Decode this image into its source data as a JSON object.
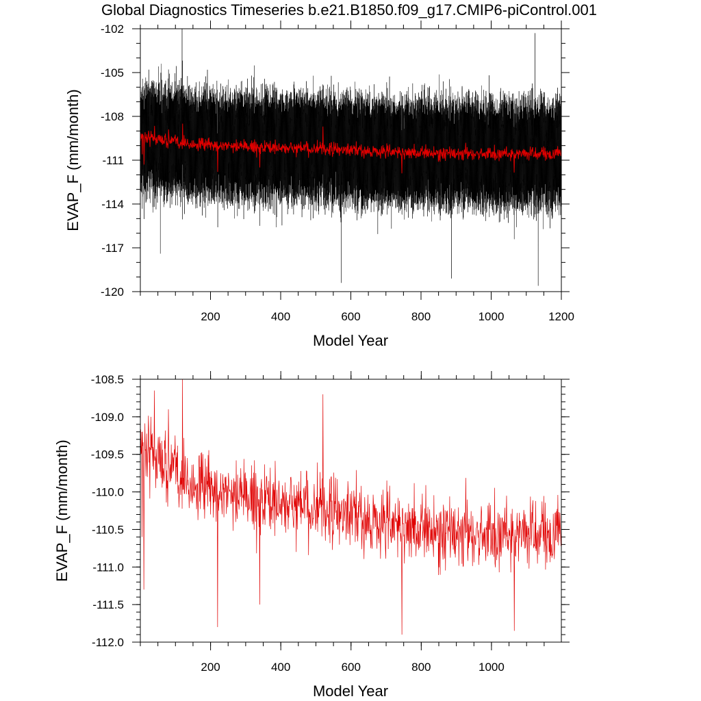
{
  "title": "Global Diagnostics Timeseries b.e21.B1850.f09_g17.CMIP6-piControl.001",
  "colors": {
    "monthly_series": "#000000",
    "annual_series": "#e00000",
    "axis": "#000000",
    "background": "#ffffff"
  },
  "chart_data": [
    {
      "type": "line",
      "name": "monthly-and-annual-timeseries",
      "xlabel": "Model Year",
      "ylabel": "EVAP_F (mm/month)",
      "xlim": [
        0,
        1200
      ],
      "ylim": [
        -120,
        -102
      ],
      "x_ticks": [
        200,
        400,
        600,
        800,
        1000,
        1200
      ],
      "y_ticks": [
        -120,
        -117,
        -114,
        -111,
        -108,
        -105,
        -102
      ],
      "y_tick_labels": [
        "-120",
        "-117",
        "-114",
        "-111",
        "-108",
        "-105",
        "-102"
      ],
      "x_minor_step": 50,
      "y_minor_step": 1,
      "grid": false,
      "series": [
        {
          "name": "monthly",
          "color": "#000000",
          "description": "monthly values, range about -119.5 to -102",
          "x_start": 0,
          "x_end": 1200,
          "mean_start": -109.7,
          "mean_end": -110.6,
          "envelope_half_width": 3.6,
          "min": -119.6,
          "max": -102.1
        },
        {
          "name": "annual",
          "color": "#e00000",
          "description": "annual mean overlay",
          "x_start": 0,
          "x_end": 1200,
          "min": -111.9,
          "max": -108.5
        }
      ]
    },
    {
      "type": "line",
      "name": "annual-mean-timeseries",
      "xlabel": "Model Year",
      "ylabel": "EVAP_F (mm/month)",
      "xlim": [
        0,
        1199
      ],
      "ylim": [
        -112.0,
        -108.5
      ],
      "x_ticks": [
        200,
        400,
        600,
        800,
        1000
      ],
      "y_ticks": [
        -112.0,
        -111.5,
        -111.0,
        -110.5,
        -110.0,
        -109.5,
        -109.0,
        -108.5
      ],
      "y_tick_labels": [
        "-112.0",
        "-111.5",
        "-111.0",
        "-110.5",
        "-110.0",
        "-109.5",
        "-109.0",
        "-108.5"
      ],
      "x_minor_step": 50,
      "y_minor_step": 0.1,
      "grid": false,
      "series": [
        {
          "name": "annual",
          "color": "#e00000",
          "x_start": 0,
          "x_end": 1199,
          "key_points": [
            [
              0,
              -109.7
            ],
            [
              5,
              -110.6
            ],
            [
              10,
              -111.3
            ],
            [
              20,
              -109.8
            ],
            [
              30,
              -109.0
            ],
            [
              40,
              -108.65
            ],
            [
              50,
              -109.4
            ],
            [
              80,
              -108.9
            ],
            [
              100,
              -109.6
            ],
            [
              120,
              -108.5
            ],
            [
              150,
              -110.0
            ],
            [
              200,
              -110.3
            ],
            [
              220,
              -111.8
            ],
            [
              250,
              -110.0
            ],
            [
              300,
              -110.2
            ],
            [
              340,
              -111.5
            ],
            [
              400,
              -110.3
            ],
            [
              500,
              -110.4
            ],
            [
              520,
              -108.7
            ],
            [
              600,
              -110.4
            ],
            [
              700,
              -110.4
            ],
            [
              745,
              -111.9
            ],
            [
              800,
              -110.4
            ],
            [
              900,
              -110.5
            ],
            [
              1000,
              -110.7
            ],
            [
              1065,
              -111.85
            ],
            [
              1100,
              -110.6
            ],
            [
              1150,
              -110.8
            ],
            [
              1199,
              -110.3
            ]
          ],
          "min": -111.95,
          "max": -108.5
        }
      ]
    }
  ]
}
